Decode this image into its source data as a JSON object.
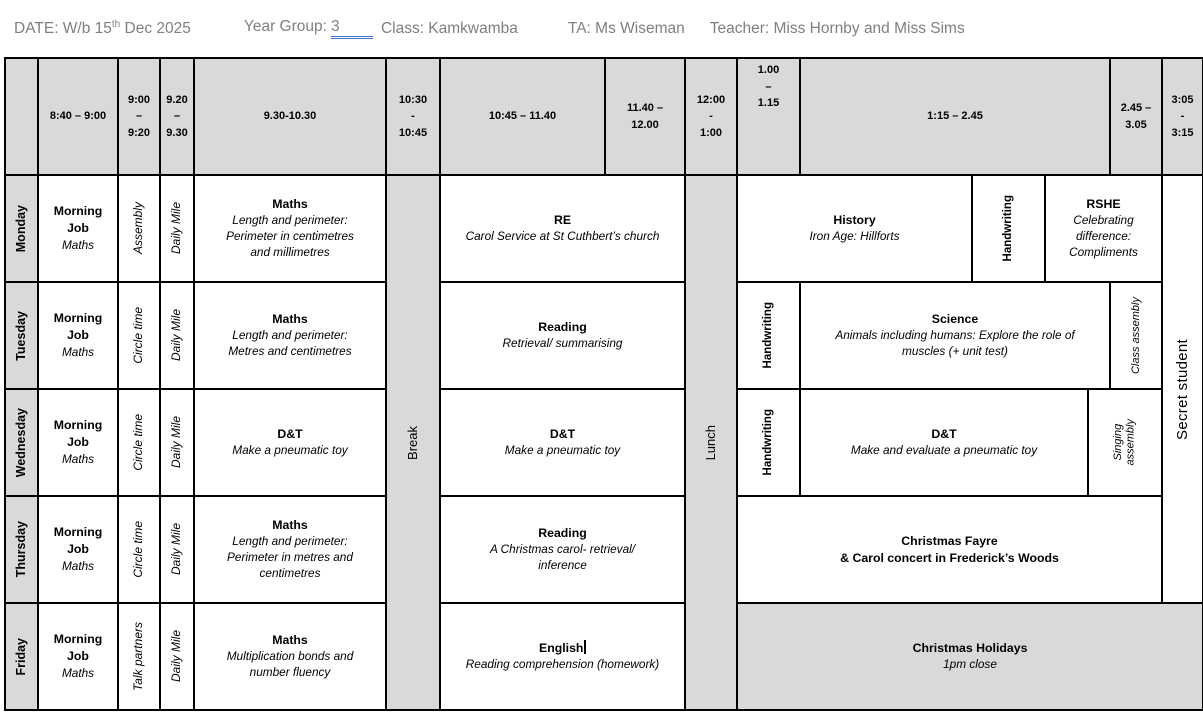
{
  "doc_header": {
    "date_prefix": "DATE: W/b 15",
    "date_ordinal": "th",
    "date_suffix": " Dec 2025",
    "year_group_label": "Year Group:",
    "year_group_value": "3",
    "class_label": "Class: Kamkwamba",
    "ta_label": "TA: Ms Wiseman",
    "teacher_label": "Teacher: Miss Hornby and Miss Sims"
  },
  "colors": {
    "shaded_cell": "#d9d9d9",
    "border": "#000000",
    "doc_header_text": "#7f7f7f",
    "year_group_underline": "#4472c4"
  },
  "grid": {
    "cells": [
      {
        "name": "corner-cell",
        "col": [
          1,
          2
        ],
        "row": [
          1,
          2
        ],
        "cls": "hdr",
        "interactable": false,
        "text": ""
      },
      {
        "name": "time-header-0840-0900",
        "col": [
          2,
          3
        ],
        "row": [
          1,
          2
        ],
        "cls": "hdr",
        "interactable": false,
        "text": "8:40 – 9:00"
      },
      {
        "name": "time-header-0900-0920",
        "col": [
          3,
          4
        ],
        "row": [
          1,
          2
        ],
        "cls": "hdr",
        "interactable": false,
        "text": "9:00\n–\n9:20"
      },
      {
        "name": "time-header-0920-0930",
        "col": [
          4,
          5
        ],
        "row": [
          1,
          2
        ],
        "cls": "hdr",
        "interactable": false,
        "text": "9.20\n–\n9.30"
      },
      {
        "name": "time-header-0930-1030",
        "col": [
          5,
          6
        ],
        "row": [
          1,
          2
        ],
        "cls": "hdr",
        "interactable": false,
        "text": "9.30-10.30"
      },
      {
        "name": "time-header-1030-1045",
        "col": [
          6,
          7
        ],
        "row": [
          1,
          2
        ],
        "cls": "hdr",
        "interactable": false,
        "text": "10:30\n-\n10:45"
      },
      {
        "name": "time-header-1045-1140",
        "col": [
          7,
          8
        ],
        "row": [
          1,
          2
        ],
        "cls": "hdr",
        "interactable": false,
        "text": "10:45 – 11.40"
      },
      {
        "name": "time-header-1140-1200",
        "col": [
          8,
          9
        ],
        "row": [
          1,
          2
        ],
        "cls": "hdr",
        "interactable": false,
        "text": "11.40 – 12.00"
      },
      {
        "name": "time-header-1200-100",
        "col": [
          9,
          10
        ],
        "row": [
          1,
          2
        ],
        "cls": "hdr",
        "interactable": false,
        "text": "12:00\n-\n1:00"
      },
      {
        "name": "time-header-100-115",
        "col": [
          10,
          11
        ],
        "row": [
          1,
          2
        ],
        "cls": "hdr top",
        "interactable": false,
        "text": "1.00\n–\n1.15"
      },
      {
        "name": "time-header-115-245",
        "col": [
          11,
          15
        ],
        "row": [
          1,
          2
        ],
        "cls": "hdr",
        "interactable": false,
        "text": "1:15 – 2.45"
      },
      {
        "name": "time-header-245-305",
        "col": [
          15,
          16
        ],
        "row": [
          1,
          2
        ],
        "cls": "hdr",
        "interactable": false,
        "text": "2.45 –\n3.05"
      },
      {
        "name": "time-header-305-315",
        "col": [
          16,
          17
        ],
        "row": [
          1,
          2
        ],
        "cls": "hdr",
        "interactable": false,
        "text": "3:05\n-\n3:15"
      },
      {
        "name": "break-column",
        "col": [
          6,
          7
        ],
        "row": [
          2,
          7
        ],
        "cls": "shaded vert mid",
        "interactable": false,
        "text": "Break"
      },
      {
        "name": "lunch-column",
        "col": [
          9,
          10
        ],
        "row": [
          2,
          7
        ],
        "cls": "shaded vert mid",
        "interactable": false,
        "text": "Lunch"
      },
      {
        "name": "secret-student-column",
        "col": [
          16,
          17
        ],
        "row": [
          2,
          6
        ],
        "cls": "vert secret",
        "interactable": false,
        "text": "Secret student"
      },
      {
        "name": "day-label-monday",
        "col": [
          1,
          2
        ],
        "row": [
          2,
          3
        ],
        "cls": "day vert",
        "interactable": false,
        "text": "Monday"
      },
      {
        "name": "monday-morning-job",
        "col": [
          2,
          3
        ],
        "row": [
          2,
          3
        ],
        "interactable": true,
        "title": "Morning\nJob",
        "subtitle": "Maths"
      },
      {
        "name": "monday-assembly",
        "col": [
          3,
          4
        ],
        "row": [
          2,
          3
        ],
        "cls": "vert it",
        "interactable": true,
        "text": "Assembly"
      },
      {
        "name": "monday-daily-mile",
        "col": [
          4,
          5
        ],
        "row": [
          2,
          3
        ],
        "cls": "vert it",
        "interactable": true,
        "text": "Daily Mile"
      },
      {
        "name": "monday-maths",
        "col": [
          5,
          6
        ],
        "row": [
          2,
          3
        ],
        "interactable": true,
        "title": "Maths",
        "subtitle": "Length and perimeter:\nPerimeter in centimetres\nand millimetres"
      },
      {
        "name": "monday-re",
        "col": [
          7,
          9
        ],
        "row": [
          2,
          3
        ],
        "interactable": true,
        "title": "RE",
        "subtitle": "Carol Service at St Cuthbert’s church"
      },
      {
        "name": "monday-history",
        "col": [
          10,
          12
        ],
        "row": [
          2,
          3
        ],
        "interactable": true,
        "title": "History",
        "subtitle": "Iron Age: Hillforts"
      },
      {
        "name": "monday-handwriting",
        "col": [
          12,
          13
        ],
        "row": [
          2,
          3
        ],
        "cls": "vert hw",
        "interactable": true,
        "text": "Handwriting"
      },
      {
        "name": "monday-rshe",
        "col": [
          13,
          16
        ],
        "row": [
          2,
          3
        ],
        "interactable": true,
        "title": "RSHE",
        "subtitle": "Celebrating\ndifference:\nCompliments"
      },
      {
        "name": "day-label-tuesday",
        "col": [
          1,
          2
        ],
        "row": [
          3,
          4
        ],
        "cls": "day vert",
        "interactable": false,
        "text": "Tuesday"
      },
      {
        "name": "tuesday-morning-job",
        "col": [
          2,
          3
        ],
        "row": [
          3,
          4
        ],
        "interactable": true,
        "title": "Morning\nJob",
        "subtitle": "Maths"
      },
      {
        "name": "tuesday-circle-time",
        "col": [
          3,
          4
        ],
        "row": [
          3,
          4
        ],
        "cls": "vert it",
        "interactable": true,
        "text": "Circle time"
      },
      {
        "name": "tuesday-daily-mile",
        "col": [
          4,
          5
        ],
        "row": [
          3,
          4
        ],
        "cls": "vert it",
        "interactable": true,
        "text": "Daily Mile"
      },
      {
        "name": "tuesday-maths",
        "col": [
          5,
          6
        ],
        "row": [
          3,
          4
        ],
        "interactable": true,
        "title": "Maths",
        "subtitle": "Length and perimeter:\nMetres and centimetres"
      },
      {
        "name": "tuesday-reading",
        "col": [
          7,
          9
        ],
        "row": [
          3,
          4
        ],
        "interactable": true,
        "title": "Reading",
        "subtitle": "Retrieval/ summarising"
      },
      {
        "name": "tuesday-handwriting",
        "col": [
          10,
          11
        ],
        "row": [
          3,
          4
        ],
        "cls": "vert hw",
        "interactable": true,
        "text": "Handwriting"
      },
      {
        "name": "tuesday-science",
        "col": [
          11,
          15
        ],
        "row": [
          3,
          4
        ],
        "interactable": true,
        "title": "Science",
        "subtitle": "Animals including humans: Explore the role of\nmuscles (+ unit test)"
      },
      {
        "name": "tuesday-class-assembly",
        "col": [
          15,
          16
        ],
        "row": [
          3,
          4
        ],
        "cls": "vert asm",
        "interactable": true,
        "text": "Class assembly"
      },
      {
        "name": "day-label-wednesday",
        "col": [
          1,
          2
        ],
        "row": [
          4,
          5
        ],
        "cls": "day vert",
        "interactable": false,
        "text": "Wednesday"
      },
      {
        "name": "wednesday-morning-job",
        "col": [
          2,
          3
        ],
        "row": [
          4,
          5
        ],
        "interactable": true,
        "title": "Morning\nJob",
        "subtitle": "Maths"
      },
      {
        "name": "wednesday-circle-time",
        "col": [
          3,
          4
        ],
        "row": [
          4,
          5
        ],
        "cls": "vert it",
        "interactable": true,
        "text": "Circle time"
      },
      {
        "name": "wednesday-daily-mile",
        "col": [
          4,
          5
        ],
        "row": [
          4,
          5
        ],
        "cls": "vert it",
        "interactable": true,
        "text": "Daily Mile"
      },
      {
        "name": "wednesday-dt-morning",
        "col": [
          5,
          6
        ],
        "row": [
          4,
          5
        ],
        "interactable": true,
        "title": "D&T",
        "subtitle": "Make a pneumatic toy"
      },
      {
        "name": "wednesday-dt-midday",
        "col": [
          7,
          9
        ],
        "row": [
          4,
          5
        ],
        "interactable": true,
        "title": "D&T",
        "subtitle": "Make a pneumatic toy"
      },
      {
        "name": "wednesday-handwriting",
        "col": [
          10,
          11
        ],
        "row": [
          4,
          5
        ],
        "cls": "vert hw",
        "interactable": true,
        "text": "Handwriting"
      },
      {
        "name": "wednesday-dt-afternoon",
        "col": [
          11,
          14
        ],
        "row": [
          4,
          5
        ],
        "interactable": true,
        "title": "D&T",
        "subtitle": "Make and evaluate a pneumatic toy"
      },
      {
        "name": "wednesday-singing-assembly",
        "col": [
          14,
          16
        ],
        "row": [
          4,
          5
        ],
        "cls": "vert asm",
        "interactable": true,
        "text": "Singing\nassembly"
      },
      {
        "name": "day-label-thursday",
        "col": [
          1,
          2
        ],
        "row": [
          5,
          6
        ],
        "cls": "day vert",
        "interactable": false,
        "text": "Thursday"
      },
      {
        "name": "thursday-morning-job",
        "col": [
          2,
          3
        ],
        "row": [
          5,
          6
        ],
        "interactable": true,
        "title": "Morning\nJob",
        "subtitle": "Maths"
      },
      {
        "name": "thursday-circle-time",
        "col": [
          3,
          4
        ],
        "row": [
          5,
          6
        ],
        "cls": "vert it",
        "interactable": true,
        "text": "Circle time"
      },
      {
        "name": "thursday-daily-mile",
        "col": [
          4,
          5
        ],
        "row": [
          5,
          6
        ],
        "cls": "vert it",
        "interactable": true,
        "text": "Daily Mile"
      },
      {
        "name": "thursday-maths",
        "col": [
          5,
          6
        ],
        "row": [
          5,
          6
        ],
        "interactable": true,
        "title": "Maths",
        "subtitle": "Length and perimeter:\nPerimeter in metres and\ncentimetres"
      },
      {
        "name": "thursday-reading",
        "col": [
          7,
          9
        ],
        "row": [
          5,
          6
        ],
        "interactable": true,
        "title": "Reading",
        "subtitle": "A Christmas carol- retrieval/\ninference"
      },
      {
        "name": "thursday-christmas-fayre",
        "col": [
          10,
          16
        ],
        "row": [
          5,
          6
        ],
        "interactable": true,
        "title": "Christmas Fayre\n& Carol concert in Frederick’s Woods"
      },
      {
        "name": "day-label-friday",
        "col": [
          1,
          2
        ],
        "row": [
          6,
          7
        ],
        "cls": "day vert",
        "interactable": false,
        "text": "Friday"
      },
      {
        "name": "friday-morning-job",
        "col": [
          2,
          3
        ],
        "row": [
          6,
          7
        ],
        "interactable": true,
        "title": "Morning\nJob",
        "subtitle": "Maths"
      },
      {
        "name": "friday-talk-partners",
        "col": [
          3,
          4
        ],
        "row": [
          6,
          7
        ],
        "cls": "vert it",
        "interactable": true,
        "text": "Talk partners"
      },
      {
        "name": "friday-daily-mile",
        "col": [
          4,
          5
        ],
        "row": [
          6,
          7
        ],
        "cls": "vert it",
        "interactable": true,
        "text": "Daily Mile"
      },
      {
        "name": "friday-maths",
        "col": [
          5,
          6
        ],
        "row": [
          6,
          7
        ],
        "interactable": true,
        "title": "Maths",
        "subtitle": "Multiplication bonds and\nnumber fluency"
      },
      {
        "name": "friday-english",
        "col": [
          7,
          9
        ],
        "row": [
          6,
          7
        ],
        "interactable": true,
        "cursor": true,
        "title": "English",
        "subtitle": "Reading comprehension (homework)"
      },
      {
        "name": "friday-christmas-holidays",
        "col": [
          10,
          17
        ],
        "row": [
          6,
          7
        ],
        "cls": "shaded",
        "interactable": true,
        "title": "Christmas Holidays",
        "subtitle": "1pm close"
      }
    ]
  }
}
